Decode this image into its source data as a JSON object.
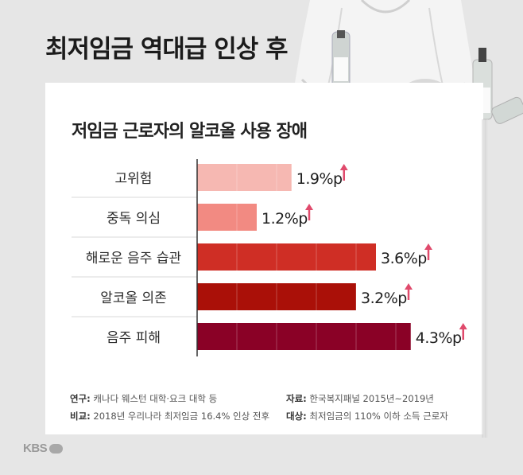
{
  "headline": "최저임금 역대급 인상 후",
  "chart_data": {
    "type": "bar",
    "orientation": "horizontal",
    "title": "저임금 근로자의 알코올 사용 장애",
    "categories": [
      "고위험",
      "중독 의심",
      "해로운 음주 습관",
      "알코올 의존",
      "음주 피해"
    ],
    "values": [
      1.9,
      1.2,
      3.6,
      3.2,
      4.3
    ],
    "value_labels": [
      "1.9%p",
      "1.2%p",
      "3.6%p",
      "3.2%p",
      "4.3%p"
    ],
    "colors": [
      "#f6b8b2",
      "#f28a82",
      "#cf2e25",
      "#aa1008",
      "#8a0126"
    ],
    "arrow_color": "#e04a6c",
    "xlim": [
      0,
      4.8
    ]
  },
  "sources": {
    "left": [
      {
        "key": "연구:",
        "text": "캐나다 웨스턴 대학·요크 대학 등"
      },
      {
        "key": "비교:",
        "text": "2018년 우리나라 최저임금 16.4% 인상 전후"
      }
    ],
    "right": [
      {
        "key": "자료:",
        "text": "한국복지패널 2015년~2019년"
      },
      {
        "key": "대상:",
        "text": "최저임금의 110% 이하 소득 근로자"
      }
    ]
  },
  "logo": "KBS"
}
